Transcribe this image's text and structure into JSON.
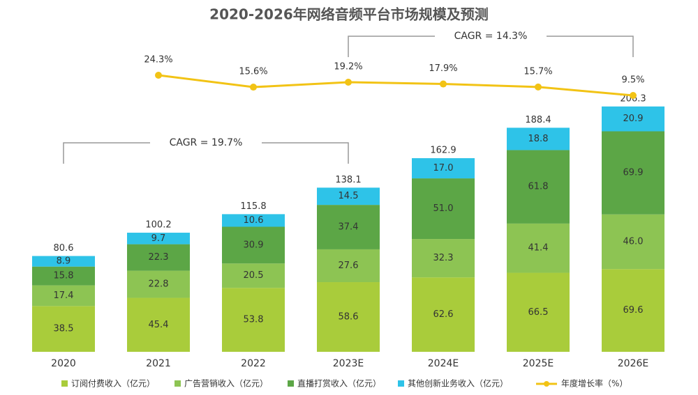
{
  "chart_data": {
    "type": "stacked-bar",
    "title": "2020-2026年网络音频平台市场规模及预测",
    "categories": [
      "2020",
      "2021",
      "2022",
      "2023E",
      "2024E",
      "2025E",
      "2026E"
    ],
    "series": [
      {
        "name": "订阅付费收入（亿元）",
        "color": "#a9cc3b",
        "values": [
          38.5,
          45.4,
          53.8,
          58.6,
          62.6,
          66.5,
          69.6
        ]
      },
      {
        "name": "广告营销收入（亿元）",
        "color": "#8dc453",
        "values": [
          17.4,
          22.8,
          20.5,
          27.6,
          32.3,
          41.4,
          46.0
        ],
        "value_labels": [
          "17.4",
          "22.8",
          "20.5",
          "27.6",
          "32.3",
          "41.4",
          "46.0"
        ]
      },
      {
        "name": "直播打赏收入（亿元）",
        "color": "#5ca646",
        "values": [
          15.8,
          22.3,
          30.9,
          37.4,
          51.0,
          61.8,
          69.9
        ],
        "value_labels": [
          "15.8",
          "22.3",
          "30.9",
          "37.4",
          "51.0",
          "61.8",
          "69.9"
        ]
      },
      {
        "name": "其他创新业务收入（亿元）",
        "color": "#2ec3e8",
        "values": [
          8.9,
          9.7,
          10.6,
          14.5,
          17.0,
          18.8,
          20.9
        ],
        "value_labels": [
          "8.9",
          "9.7",
          "10.6",
          "14.5",
          "17.0",
          "18.8",
          "20.9"
        ]
      }
    ],
    "totals": [
      80.6,
      100.2,
      115.8,
      138.1,
      162.9,
      188.4,
      206.3
    ],
    "line": {
      "name": "年度增长率（%）",
      "color": "#f2c315",
      "values": [
        null,
        24.3,
        15.6,
        19.2,
        17.9,
        15.7,
        9.5
      ],
      "value_labels": [
        null,
        "24.3%",
        "15.6%",
        "19.2%",
        "17.9%",
        "15.7%",
        "9.5%"
      ]
    },
    "annotations": [
      "CAGR = 19.7%",
      "CAGR = 14.3%"
    ]
  }
}
